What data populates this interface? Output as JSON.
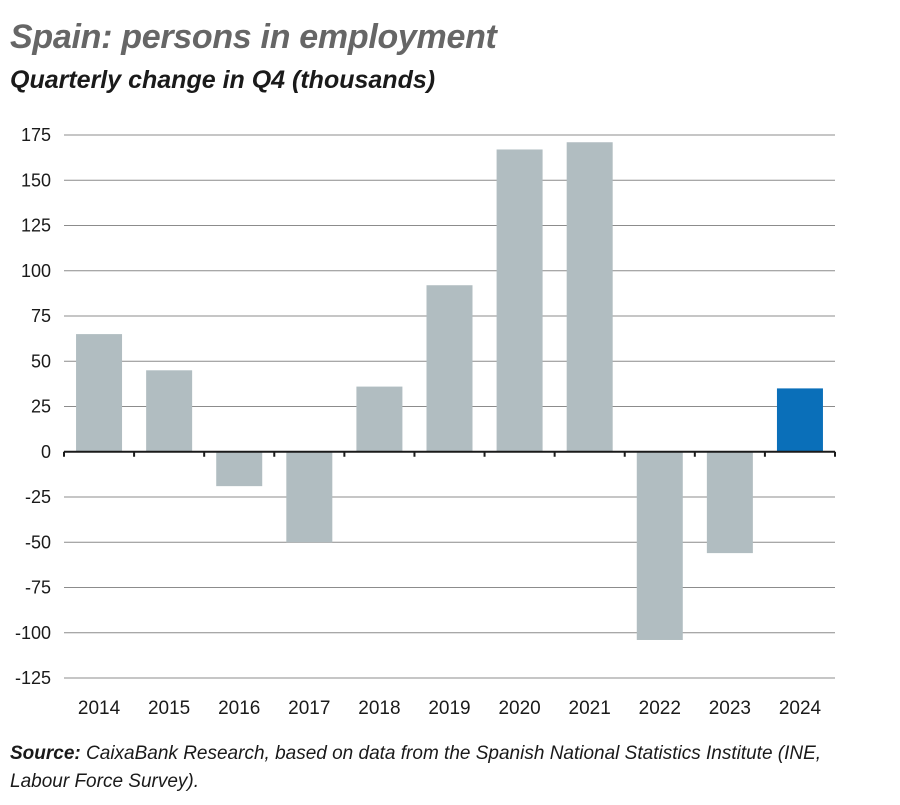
{
  "chart_data": {
    "type": "bar",
    "title": "Spain: persons in employment",
    "subtitle": "Quarterly change in Q4 (thousands)",
    "categories": [
      "2014",
      "2015",
      "2016",
      "2017",
      "2018",
      "2019",
      "2020",
      "2021",
      "2022",
      "2023",
      "2024"
    ],
    "values": [
      65,
      45,
      -19,
      -50,
      36,
      92,
      167,
      171,
      -104,
      -56,
      35
    ],
    "highlight_category": "2024",
    "ylim": [
      -125,
      175
    ],
    "yticks": [
      175,
      150,
      125,
      100,
      75,
      50,
      25,
      0,
      -25,
      -50,
      -75,
      -100,
      -125
    ],
    "xlabel": "",
    "ylabel": "",
    "grid": true,
    "colors": {
      "bar": "#b1bdc1",
      "highlight": "#0a6fb9",
      "grid": "#8c8c8c",
      "axis": "#1a1a1a"
    }
  },
  "source": {
    "label": "Source:",
    "text": " CaixaBank Research, based on data from the Spanish National Statistics Institute (INE, Labour Force Survey)."
  }
}
